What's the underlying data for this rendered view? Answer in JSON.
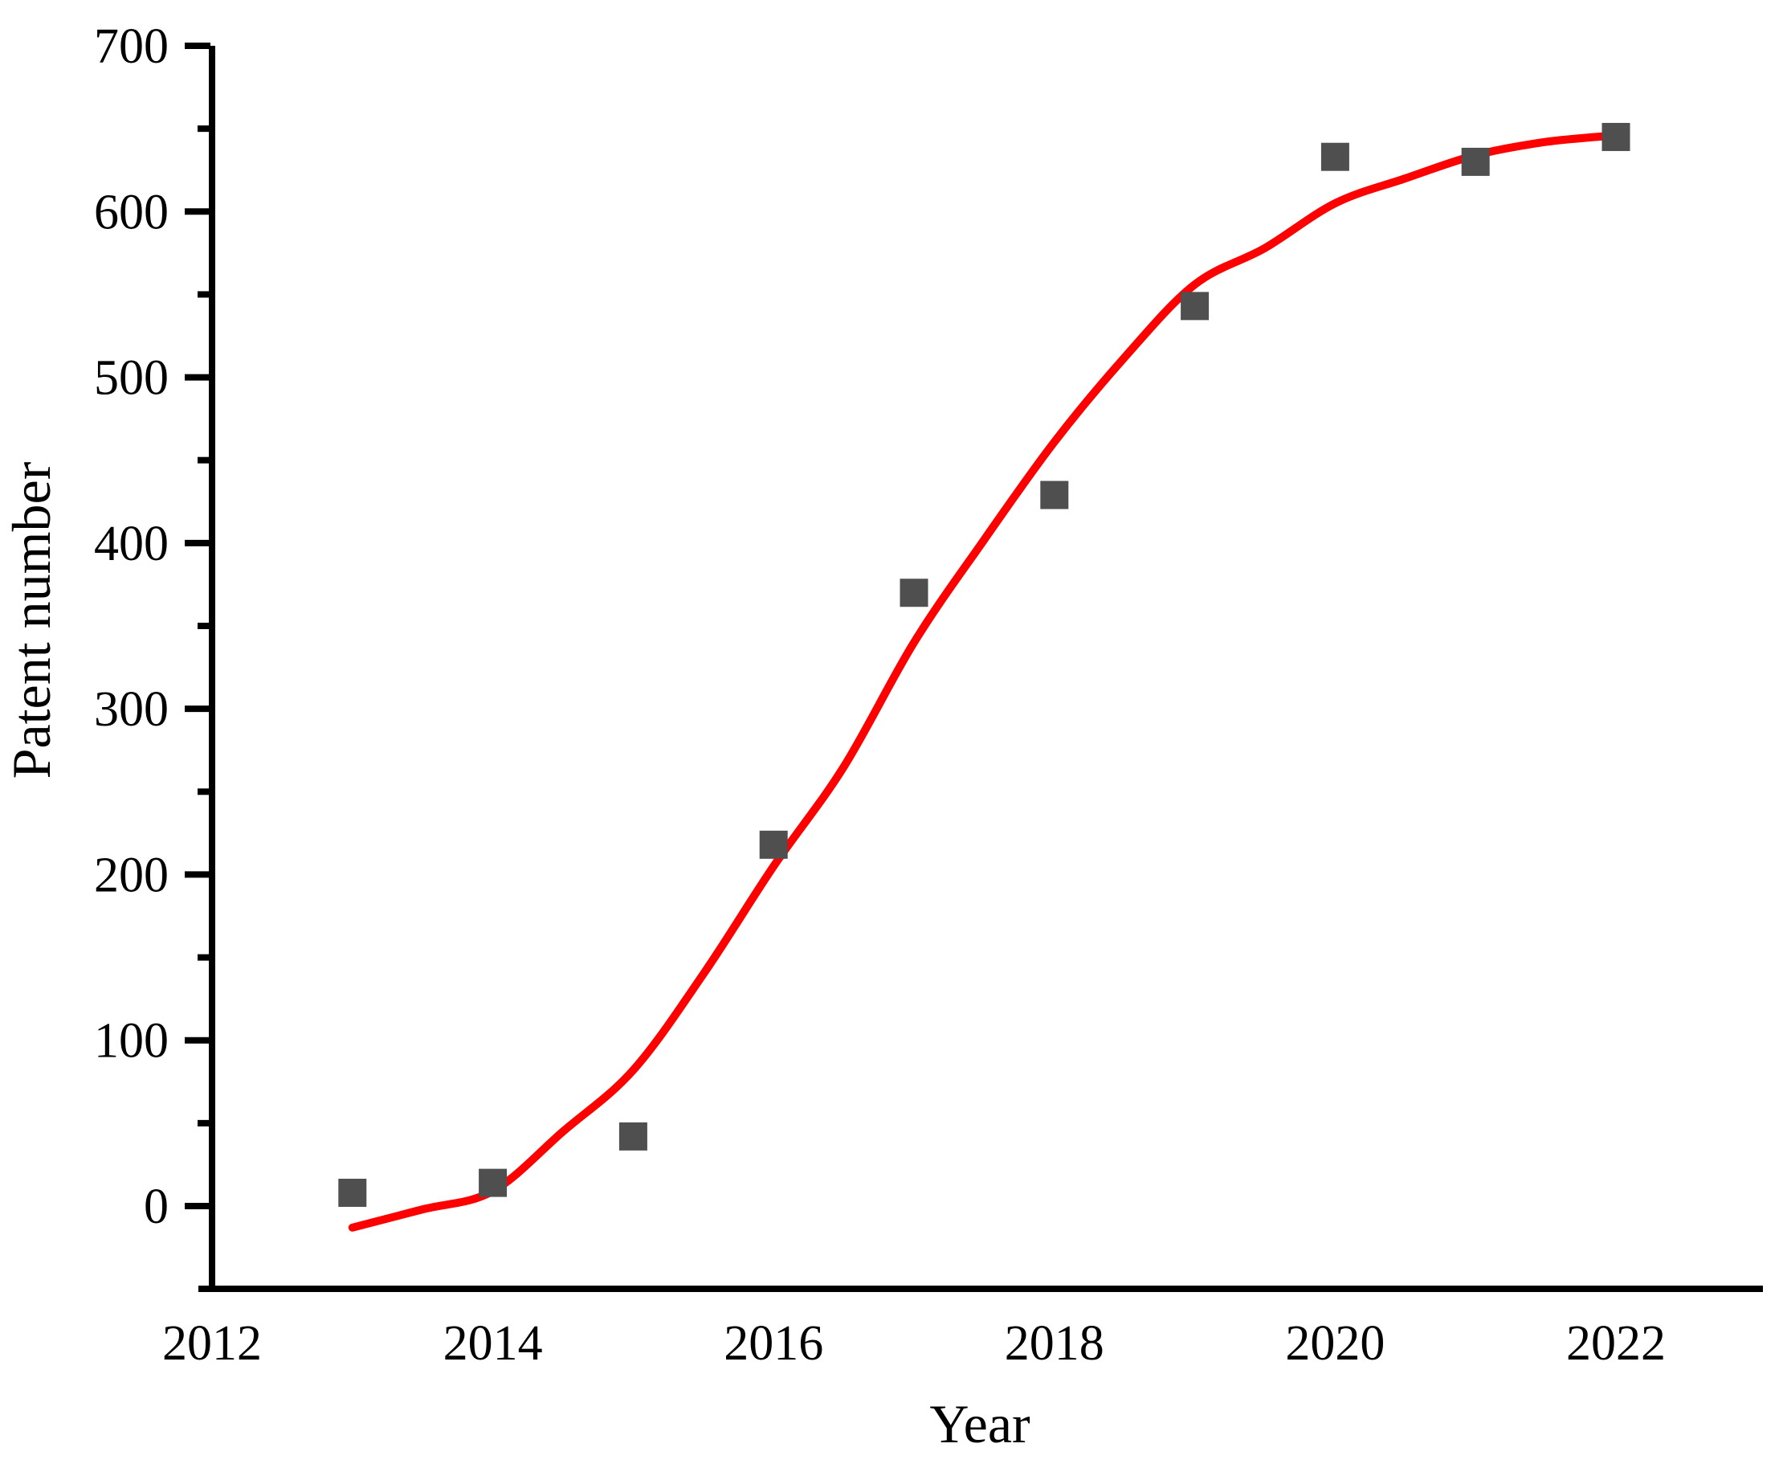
{
  "chart_data": {
    "type": "scatter",
    "title": "",
    "xlabel": "Year",
    "ylabel": "Patent number",
    "x": [
      2013,
      2014,
      2015,
      2016,
      2017,
      2018,
      2019,
      2020,
      2021,
      2022
    ],
    "y": [
      8,
      14,
      42,
      218,
      370,
      429,
      543,
      633,
      630,
      645
    ],
    "series": [
      {
        "name": "patent-count-points",
        "type": "scatter",
        "marker": "square",
        "color": "#4f4f4f"
      },
      {
        "name": "sigmoid-fit-line",
        "type": "line",
        "color": "#ff0000"
      }
    ],
    "fit_curve_points": [
      [
        2013.0,
        -13
      ],
      [
        2013.5,
        -2
      ],
      [
        2014.0,
        9
      ],
      [
        2014.5,
        45
      ],
      [
        2015.0,
        82
      ],
      [
        2015.5,
        140
      ],
      [
        2016.0,
        205
      ],
      [
        2016.5,
        265
      ],
      [
        2017.0,
        340
      ],
      [
        2017.5,
        402
      ],
      [
        2018.0,
        461
      ],
      [
        2018.5,
        512
      ],
      [
        2019.0,
        556
      ],
      [
        2019.5,
        578
      ],
      [
        2020.0,
        605
      ],
      [
        2020.5,
        620
      ],
      [
        2021.0,
        634
      ],
      [
        2021.5,
        642
      ],
      [
        2022.0,
        646
      ]
    ],
    "x_ticks": [
      2012,
      2014,
      2016,
      2018,
      2020,
      2022
    ],
    "y_ticks": [
      0,
      100,
      200,
      300,
      400,
      500,
      600,
      700
    ],
    "y_minor_ticks": [
      50,
      150,
      250,
      350,
      450,
      550,
      650
    ],
    "xlim": [
      2012,
      2023.05
    ],
    "ylim": [
      -50,
      702
    ],
    "grid": false,
    "legend": null,
    "marker_size": 35,
    "line_width": 10,
    "axis_color": "#000000",
    "point_color": "#4f4f4f",
    "curve_color": "#ff0000",
    "background": "#ffffff"
  }
}
